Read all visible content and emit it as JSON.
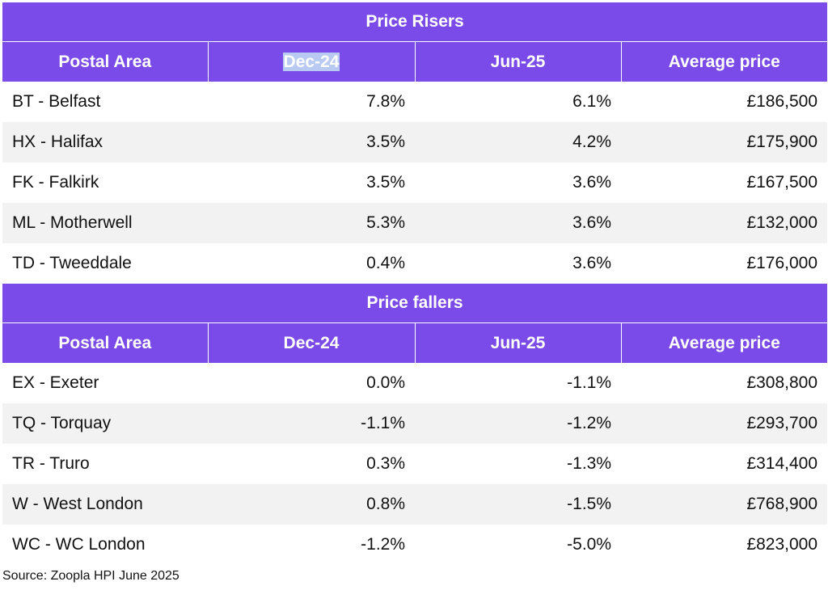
{
  "risers": {
    "title": "Price Risers",
    "headers": [
      "Postal Area",
      "Dec-24",
      "Jun-25",
      "Average price"
    ],
    "rows": [
      {
        "area": "BT - Belfast",
        "dec24": "7.8%",
        "jun25": "6.1%",
        "price": "£186,500"
      },
      {
        "area": "HX - Halifax",
        "dec24": "3.5%",
        "jun25": "4.2%",
        "price": "£175,900"
      },
      {
        "area": "FK - Falkirk",
        "dec24": "3.5%",
        "jun25": "3.6%",
        "price": "£167,500"
      },
      {
        "area": "ML - Motherwell",
        "dec24": "5.3%",
        "jun25": "3.6%",
        "price": "£132,000"
      },
      {
        "area": "TD - Tweeddale",
        "dec24": "0.4%",
        "jun25": "3.6%",
        "price": "£176,000"
      }
    ]
  },
  "fallers": {
    "title": "Price fallers",
    "headers": [
      "Postal Area",
      "Dec-24",
      "Jun-25",
      "Average price"
    ],
    "rows": [
      {
        "area": "EX - Exeter",
        "dec24": "0.0%",
        "jun25": "-1.1%",
        "price": "£308,800"
      },
      {
        "area": "TQ - Torquay",
        "dec24": "-1.1%",
        "jun25": "-1.2%",
        "price": "£293,700"
      },
      {
        "area": "TR - Truro",
        "dec24": "0.3%",
        "jun25": "-1.3%",
        "price": "£314,400"
      },
      {
        "area": "W - West London",
        "dec24": "0.8%",
        "jun25": "-1.5%",
        "price": "£768,900"
      },
      {
        "area": "WC - WC London",
        "dec24": "-1.2%",
        "jun25": "-5.0%",
        "price": "£823,000"
      }
    ]
  },
  "source": "Source: Zoopla HPI June 2025",
  "colors": {
    "header_bg": "#7a4be8",
    "header_text": "#ffffff",
    "alt_row_bg": "#f2f2f2",
    "selection_highlight": "#b8c9f2"
  }
}
